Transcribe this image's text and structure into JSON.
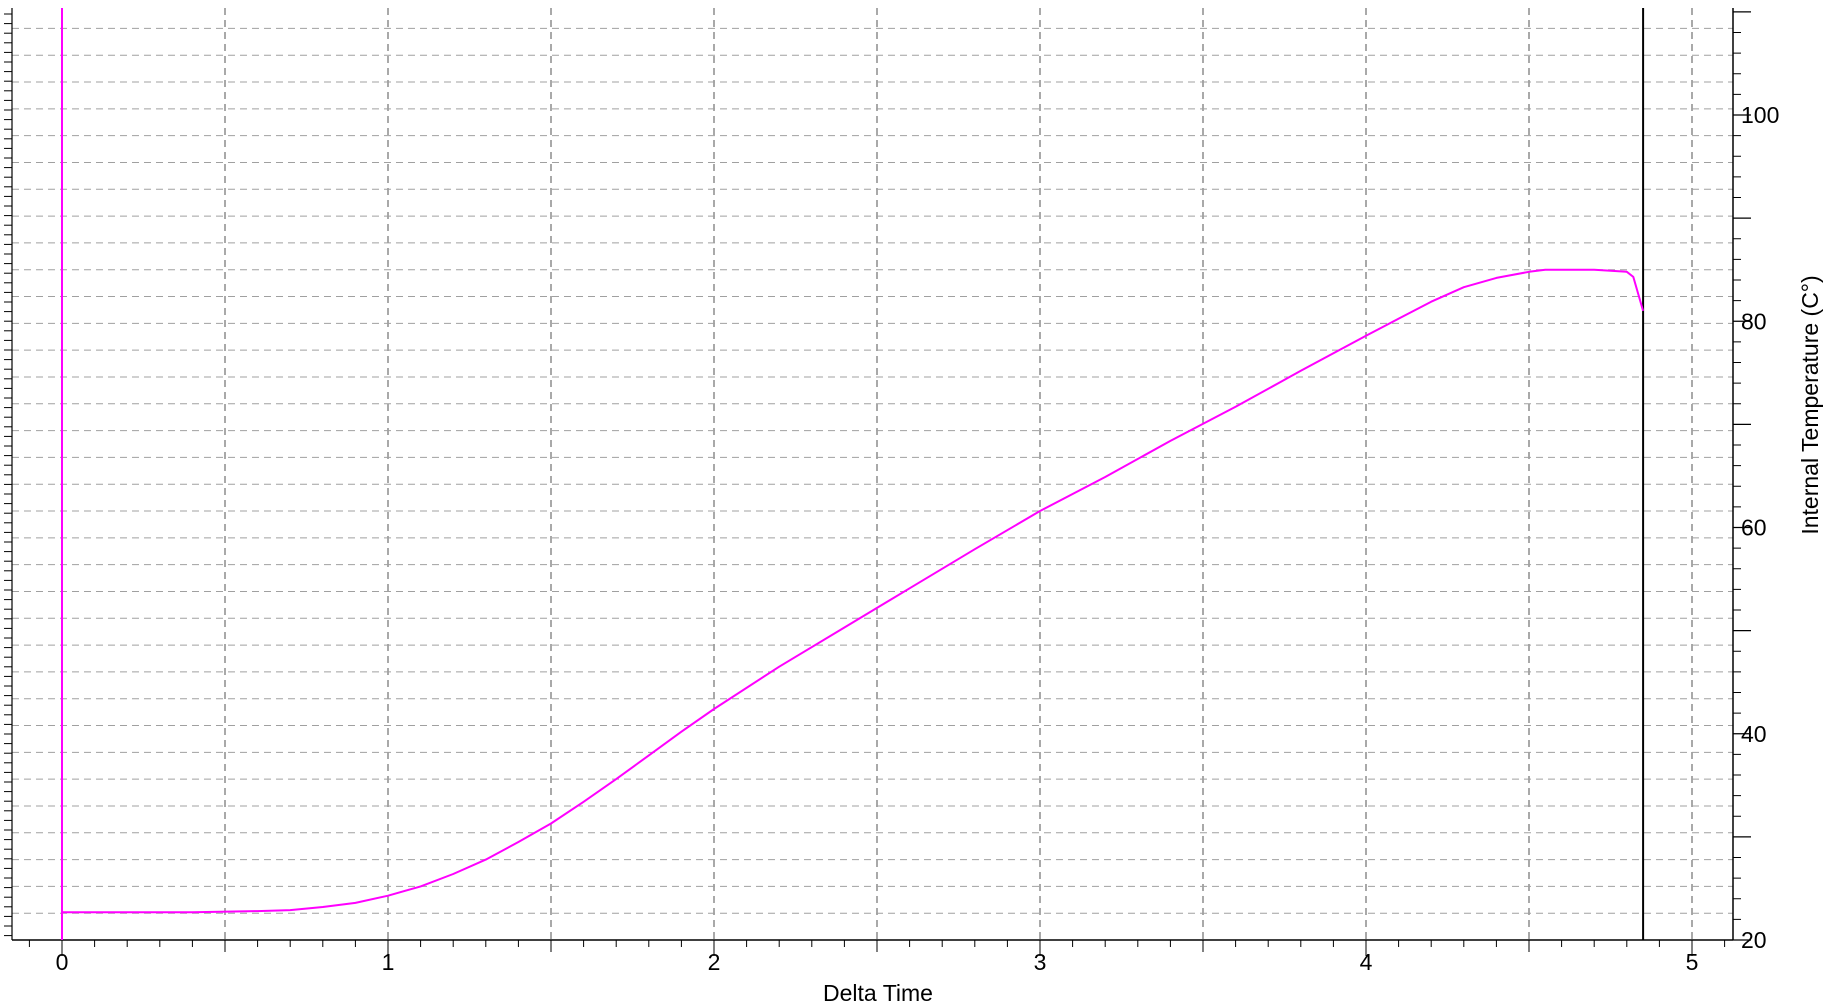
{
  "chart_data": {
    "type": "line",
    "title": "",
    "xlabel": "Delta Time",
    "ylabel": "Internal  Temperature (C°)",
    "y_axis_side": "right",
    "xlim": [
      -0.18,
      5.1
    ],
    "ylim": [
      20,
      110
    ],
    "x_ticks": [
      0,
      1,
      2,
      3,
      4,
      5
    ],
    "x_tick_labels": [
      "0",
      "1",
      "2",
      "3",
      "4",
      "5"
    ],
    "y_ticks": [
      20,
      40,
      60,
      80,
      100
    ],
    "y_tick_labels": [
      "20",
      "40",
      "60",
      "80",
      "100"
    ],
    "x_grid_step": 0.5,
    "y_grid_step": 2.6,
    "grid": true,
    "grid_style": "dashed",
    "series": [
      {
        "color": "#ff00ff",
        "x": [
          0,
          0.2,
          0.4,
          0.6,
          0.7,
          0.8,
          0.9,
          1.0,
          1.1,
          1.2,
          1.3,
          1.4,
          1.5,
          1.6,
          1.7,
          1.8,
          1.9,
          2.0,
          2.2,
          2.4,
          2.5,
          2.6,
          2.8,
          3.0,
          3.2,
          3.4,
          3.6,
          3.8,
          4.0,
          4.2,
          4.3,
          4.4,
          4.5,
          4.55,
          4.6,
          4.7,
          4.8,
          4.82,
          4.85
        ],
        "y": [
          22.7,
          22.7,
          22.7,
          22.8,
          22.9,
          23.2,
          23.6,
          24.3,
          25.2,
          26.4,
          27.8,
          29.5,
          31.3,
          33.4,
          35.6,
          37.9,
          40.2,
          42.4,
          46.5,
          50.3,
          52.2,
          54.1,
          57.9,
          61.6,
          64.9,
          68.4,
          71.7,
          75.2,
          78.6,
          81.9,
          83.3,
          84.2,
          84.8,
          85.0,
          85.0,
          85.0,
          84.8,
          84.3,
          81.0
        ]
      }
    ],
    "vertical_markers": [
      {
        "x": 0,
        "color": "#ff00ff"
      },
      {
        "x": 4.85,
        "color": "#000000"
      }
    ]
  }
}
